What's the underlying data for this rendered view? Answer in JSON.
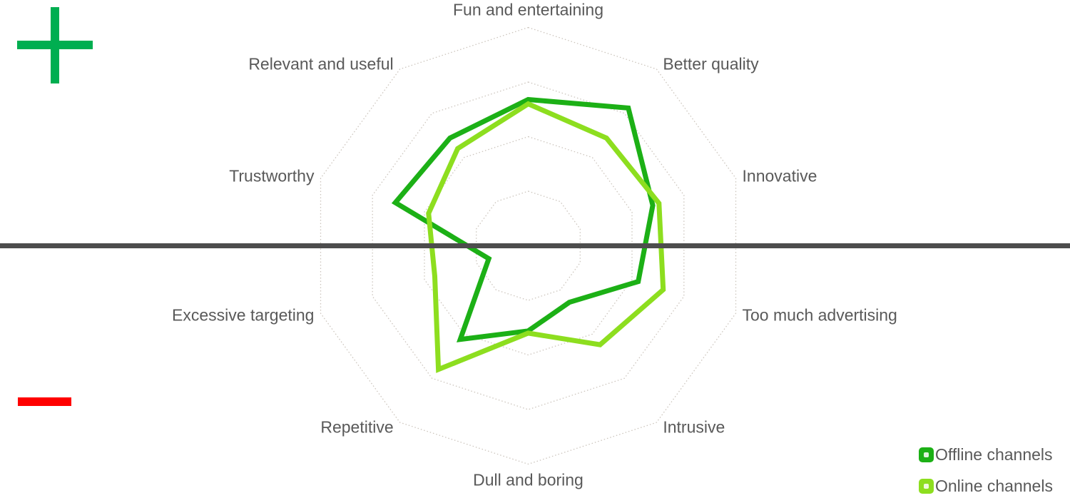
{
  "colors": {
    "offline_series": "#1CB016",
    "online_series": "#8DDE1F",
    "zero_line": "#4D4D4D",
    "axis_label_text": "#595959",
    "gridline": "#CCC5BD",
    "positive_sign": "#00AE50",
    "negative_sign": "#FF0000",
    "background": "#FFFFFF"
  },
  "legend": {
    "items": [
      {
        "id": "offline",
        "label": "Offline channels",
        "color": "#1CB016"
      },
      {
        "id": "online",
        "label": "Online channels",
        "color": "#8DDE1F"
      }
    ]
  },
  "chart_data": {
    "type": "radar",
    "categories": [
      "Fun and entertaining",
      "Better quality",
      "Innovative",
      "Too much advertising",
      "Intrusive",
      "Dull and boring",
      "Repetitive",
      "Excessive targeting",
      "Trustworthy",
      "Relevant and useful"
    ],
    "series": [
      {
        "name": "Offline channels",
        "color": "#1CB016",
        "values": [
          67,
          78,
          60,
          53,
          32,
          39,
          53,
          19,
          64,
          61
        ]
      },
      {
        "name": "Online channels",
        "color": "#8DDE1F",
        "values": [
          65,
          61,
          63,
          65,
          56,
          40,
          70,
          45,
          48,
          55
        ]
      }
    ],
    "scale": {
      "min": 0,
      "max": 100,
      "ring_count": 4,
      "ring_values": [
        25,
        50,
        75,
        100
      ],
      "gridline_style": "dotted-decagons",
      "radial_spokes": false
    },
    "layout_hints": {
      "start_angle_deg": 90,
      "direction": "clockwise",
      "legend_position": "bottom-right",
      "zero_line": "horizontal dark line across full width through chart center",
      "positive_region_marker": "green plus sign top-left (above line)",
      "negative_region_marker": "red minus sign bottom-left (below line)"
    }
  }
}
